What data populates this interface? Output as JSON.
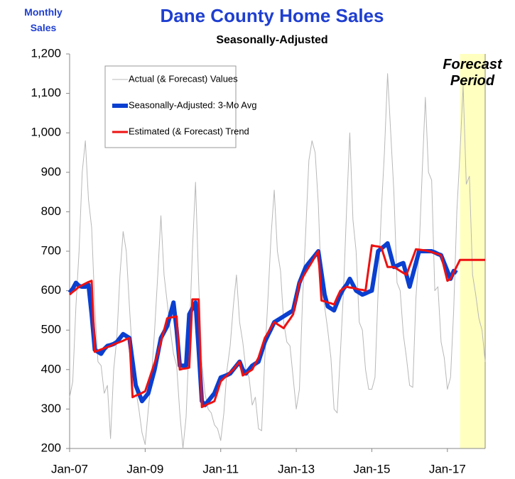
{
  "chart_data": {
    "type": "line",
    "title": "Dane County Home Sales",
    "subtitle": "Seasonally-Adjusted",
    "y_label": "Monthly Sales",
    "annotation": "Forecast Period",
    "categories": [
      "Jan-07",
      null,
      null,
      null,
      null,
      null,
      null,
      null,
      null,
      null,
      null,
      null,
      null,
      null,
      null,
      null,
      null,
      null,
      null,
      null,
      null,
      null,
      null,
      null,
      "Jan-09",
      null,
      null,
      null,
      null,
      null,
      null,
      null,
      null,
      null,
      null,
      null,
      null,
      null,
      null,
      null,
      null,
      null,
      null,
      null,
      null,
      null,
      null,
      null,
      "Jan-11",
      null,
      null,
      null,
      null,
      null,
      null,
      null,
      null,
      null,
      null,
      null,
      null,
      null,
      null,
      null,
      null,
      null,
      null,
      null,
      null,
      null,
      null,
      null,
      "Jan-13",
      null,
      null,
      null,
      null,
      null,
      null,
      null,
      null,
      null,
      null,
      null,
      null,
      null,
      null,
      null,
      null,
      null,
      null,
      null,
      null,
      null,
      null,
      null,
      "Jan-15",
      null,
      null,
      null,
      null,
      null,
      null,
      null,
      null,
      null,
      null,
      null,
      null,
      null,
      null,
      null,
      null,
      null,
      null,
      null,
      null,
      null,
      null,
      null,
      "Jan-17",
      null,
      null,
      null,
      null,
      null,
      null,
      null,
      null,
      null,
      null,
      null,
      null
    ],
    "series": [
      {
        "name": "Actual (& Forecast) Values",
        "color": "#b8b8b8",
        "values": [
          330,
          370,
          560,
          700,
          900,
          980,
          830,
          760,
          560,
          420,
          410,
          340,
          360,
          225,
          400,
          480,
          640,
          750,
          700,
          560,
          430,
          350,
          300,
          240,
          210,
          300,
          380,
          500,
          640,
          790,
          640,
          570,
          500,
          440,
          410,
          290,
          200,
          280,
          480,
          700,
          875,
          620,
          420,
          340,
          300,
          290,
          260,
          250,
          220,
          290,
          400,
          460,
          560,
          640,
          520,
          470,
          400,
          380,
          310,
          330,
          250,
          245,
          430,
          580,
          740,
          855,
          700,
          650,
          520,
          470,
          460,
          380,
          300,
          350,
          580,
          750,
          930,
          980,
          950,
          820,
          600,
          560,
          500,
          430,
          300,
          290,
          440,
          600,
          810,
          1000,
          780,
          700,
          520,
          500,
          400,
          350,
          350,
          380,
          600,
          800,
          950,
          1150,
          1000,
          850,
          620,
          600,
          490,
          430,
          360,
          355,
          580,
          700,
          900,
          1090,
          900,
          880,
          600,
          610,
          470,
          430,
          350,
          380,
          550,
          800,
          950,
          1120,
          870,
          890,
          640,
          590,
          530,
          500,
          420
        ]
      },
      {
        "name": "Seasonally-Adjusted: 3-Mo Avg",
        "color": "#0a3fd0",
        "values": [
          595,
          605,
          620,
          612,
          610,
          610,
          615,
          540,
          450,
          445,
          440,
          452,
          460,
          462,
          465,
          470,
          480,
          490,
          485,
          480,
          420,
          360,
          340,
          320,
          330,
          340,
          370,
          400,
          440,
          480,
          495,
          510,
          540,
          570,
          500,
          410,
          410,
          410,
          540,
          555,
          570,
          450,
          320,
          310,
          320,
          330,
          340,
          360,
          380,
          383,
          386,
          390,
          400,
          410,
          420,
          400,
          390,
          400,
          410,
          415,
          420,
          445,
          470,
          487,
          503,
          520,
          525,
          530,
          535,
          540,
          545,
          550,
          585,
          620,
          640,
          660,
          670,
          680,
          690,
          700,
          645,
          590,
          560,
          555,
          550,
          570,
          590,
          605,
          615,
          630,
          615,
          600,
          595,
          590,
          593,
          597,
          600,
          650,
          700,
          707,
          713,
          720,
          690,
          660,
          663,
          667,
          670,
          640,
          610,
          640,
          670,
          700,
          700,
          700,
          700,
          700,
          697,
          693,
          690,
          670,
          650,
          630,
          650,
          645,
          null,
          null,
          null,
          null,
          null,
          null,
          null,
          null,
          null
        ]
      },
      {
        "name": "Estimated (& Forecast) Trend",
        "color": "#ee1111",
        "values": [
          590,
          597,
          603,
          610,
          614,
          618,
          622,
          625,
          445,
          448,
          451,
          454,
          457,
          460,
          464,
          467,
          470,
          473,
          477,
          480,
          330,
          334,
          337,
          341,
          345,
          369,
          393,
          417,
          440,
          470,
          500,
          530,
          532,
          533,
          535,
          400,
          402,
          403,
          405,
          578,
          578,
          578,
          305,
          309,
          313,
          316,
          320,
          345,
          370,
          378,
          385,
          393,
          400,
          410,
          420,
          385,
          390,
          395,
          400,
          415,
          430,
          455,
          480,
          493,
          507,
          520,
          515,
          510,
          505,
          517,
          528,
          540,
          580,
          620,
          633,
          647,
          660,
          673,
          687,
          700,
          575,
          573,
          570,
          568,
          565,
          583,
          600,
          605,
          610,
          608,
          607,
          605,
          603,
          602,
          600,
          658,
          715,
          713,
          712,
          710,
          685,
          660,
          660,
          660,
          655,
          650,
          645,
          640,
          662,
          683,
          705,
          704,
          703,
          702,
          700,
          698,
          695,
          693,
          690,
          658,
          625,
          630,
          646,
          662,
          678,
          678,
          678,
          678,
          678,
          678,
          678,
          678,
          678
        ]
      }
    ],
    "ylim": [
      200,
      1200
    ],
    "yticks": [
      200,
      300,
      400,
      500,
      600,
      700,
      800,
      900,
      {
        "value": 1000,
        "label": "1,000"
      },
      {
        "value": 1100,
        "label": "1,100"
      },
      {
        "value": 1200,
        "label": "1,200"
      }
    ],
    "legend": "upper left"
  }
}
